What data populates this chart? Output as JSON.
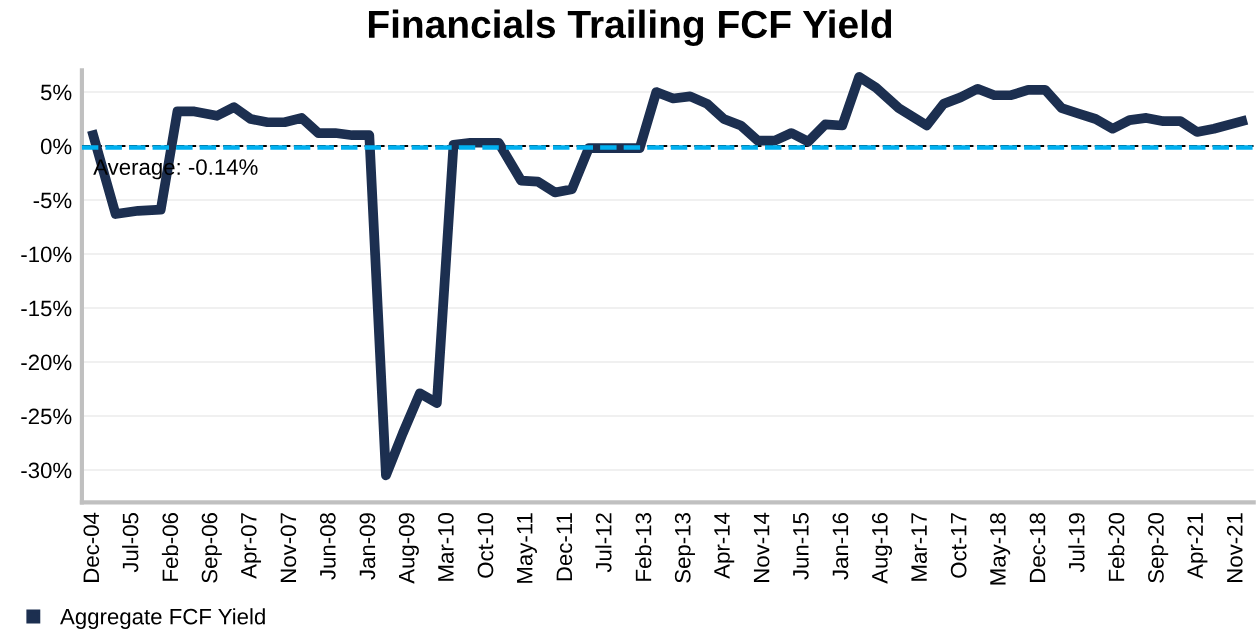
{
  "chart_data": {
    "type": "line",
    "title": "Financials Trailing FCF Yield",
    "x": [
      "2004-12",
      "2005-04",
      "2005-08",
      "2005-12",
      "2006-03",
      "2006-06",
      "2006-10",
      "2007-01",
      "2007-04",
      "2007-07",
      "2007-10",
      "2008-01",
      "2008-04",
      "2008-07",
      "2008-10",
      "2009-01",
      "2009-04",
      "2009-07",
      "2009-10",
      "2010-01",
      "2010-04",
      "2010-07",
      "2010-12",
      "2011-04",
      "2011-07",
      "2011-10",
      "2012-01",
      "2012-04",
      "2013-01",
      "2013-04",
      "2013-07",
      "2013-10",
      "2014-01",
      "2014-04",
      "2014-07",
      "2014-10",
      "2015-01",
      "2015-04",
      "2015-07",
      "2015-10",
      "2016-01",
      "2016-04",
      "2016-07",
      "2016-11",
      "2017-04",
      "2017-07",
      "2017-10",
      "2018-01",
      "2018-04",
      "2018-07",
      "2018-10",
      "2019-01",
      "2019-04",
      "2019-07",
      "2019-10",
      "2020-01",
      "2020-04",
      "2020-07",
      "2020-10",
      "2021-01",
      "2021-04",
      "2021-07",
      "2021-12"
    ],
    "series": [
      {
        "name": "Aggregate FCF Yield",
        "color": "#1c2f50",
        "values": [
          1.0,
          -6.3,
          -6.0,
          -5.9,
          3.2,
          3.2,
          2.8,
          3.6,
          2.5,
          2.2,
          2.2,
          2.6,
          1.2,
          1.2,
          1.0,
          1.0,
          -30.5,
          -26.6,
          -22.9,
          -23.8,
          0.1,
          0.3,
          0.3,
          -3.2,
          -3.3,
          -4.3,
          -4.0,
          -0.2,
          -0.2,
          5.0,
          4.4,
          4.6,
          3.9,
          2.5,
          1.9,
          0.5,
          0.5,
          1.2,
          0.4,
          2.0,
          1.9,
          6.4,
          5.4,
          3.5,
          1.9,
          3.9,
          4.5,
          5.3,
          4.7,
          4.7,
          5.2,
          5.2,
          3.5,
          3.0,
          2.5,
          1.6,
          2.4,
          2.6,
          2.3,
          2.3,
          1.3,
          1.6,
          2.3
        ]
      }
    ],
    "xlim": [
      "2004-10",
      "2022-02"
    ],
    "xticks": [
      {
        "value": "2004-12",
        "label": "Dec-04"
      },
      {
        "value": "2005-07",
        "label": "Jul-05"
      },
      {
        "value": "2006-02",
        "label": "Feb-06"
      },
      {
        "value": "2006-09",
        "label": "Sep-06"
      },
      {
        "value": "2007-04",
        "label": "Apr-07"
      },
      {
        "value": "2007-11",
        "label": "Nov-07"
      },
      {
        "value": "2008-06",
        "label": "Jun-08"
      },
      {
        "value": "2009-01",
        "label": "Jan-09"
      },
      {
        "value": "2009-08",
        "label": "Aug-09"
      },
      {
        "value": "2010-03",
        "label": "Mar-10"
      },
      {
        "value": "2010-10",
        "label": "Oct-10"
      },
      {
        "value": "2011-05",
        "label": "May-11"
      },
      {
        "value": "2011-12",
        "label": "Dec-11"
      },
      {
        "value": "2012-07",
        "label": "Jul-12"
      },
      {
        "value": "2013-02",
        "label": "Feb-13"
      },
      {
        "value": "2013-09",
        "label": "Sep-13"
      },
      {
        "value": "2014-04",
        "label": "Apr-14"
      },
      {
        "value": "2014-11",
        "label": "Nov-14"
      },
      {
        "value": "2015-06",
        "label": "Jun-15"
      },
      {
        "value": "2016-01",
        "label": "Jan-16"
      },
      {
        "value": "2016-08",
        "label": "Aug-16"
      },
      {
        "value": "2017-03",
        "label": "Mar-17"
      },
      {
        "value": "2017-10",
        "label": "Oct-17"
      },
      {
        "value": "2018-05",
        "label": "May-18"
      },
      {
        "value": "2018-12",
        "label": "Dec-18"
      },
      {
        "value": "2019-07",
        "label": "Jul-19"
      },
      {
        "value": "2020-02",
        "label": "Feb-20"
      },
      {
        "value": "2020-09",
        "label": "Sep-20"
      },
      {
        "value": "2021-04",
        "label": "Apr-21"
      },
      {
        "value": "2021-11",
        "label": "Nov-21"
      }
    ],
    "ylim": [
      -33,
      7
    ],
    "yticks": [
      {
        "value": 5,
        "label": "5%"
      },
      {
        "value": 0,
        "label": "0%"
      },
      {
        "value": -5,
        "label": "-5%"
      },
      {
        "value": -10,
        "label": "-10%"
      },
      {
        "value": -15,
        "label": "-15%"
      },
      {
        "value": -20,
        "label": "-20%"
      },
      {
        "value": -25,
        "label": "-25%"
      },
      {
        "value": -30,
        "label": "-30%"
      }
    ],
    "ref_lines": [
      {
        "axis": "y",
        "value": 0,
        "label": null,
        "color": "#000000",
        "line_style": "dashed"
      },
      {
        "axis": "y",
        "value": -0.14,
        "label": "Average: -0.14%",
        "color": "#00b0f0",
        "line_style": "dashed"
      }
    ],
    "grid": "y",
    "legend": "bottom left",
    "marker": "none",
    "line_style": "solid"
  }
}
